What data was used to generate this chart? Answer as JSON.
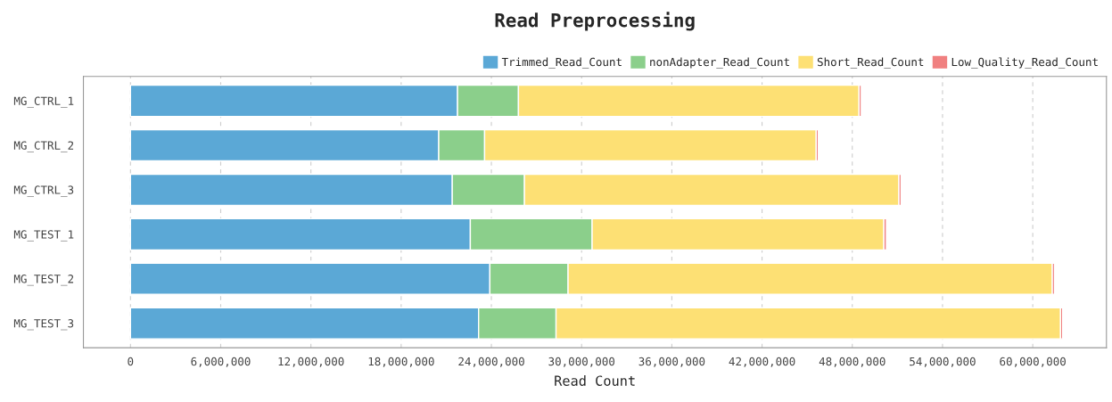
{
  "chart_data": {
    "type": "bar",
    "orientation": "horizontal",
    "stacked": true,
    "title": "Read Preprocessing",
    "xlabel": "Read Count",
    "categories": [
      "MG_CTRL_1",
      "MG_CTRL_2",
      "MG_CTRL_3",
      "MG_TEST_1",
      "MG_TEST_2",
      "MG_TEST_3"
    ],
    "series": [
      {
        "name": "Trimmed_Read_Count",
        "color": "#5ba8d6",
        "values": [
          21750000,
          20500000,
          21400000,
          22600000,
          23900000,
          23150000
        ]
      },
      {
        "name": "nonAdapter_Read_Count",
        "color": "#8bcf8b",
        "values": [
          4050000,
          3050000,
          4800000,
          8100000,
          5200000,
          5150000
        ]
      },
      {
        "name": "Short_Read_Count",
        "color": "#fde074",
        "values": [
          22650000,
          22050000,
          24900000,
          19400000,
          32200000,
          33550000
        ]
      },
      {
        "name": "Low_Quality_Read_Count",
        "color": "#f08080",
        "values": [
          150000,
          140000,
          150000,
          170000,
          150000,
          140000
        ]
      }
    ],
    "xlim": [
      -3130000,
      64900000
    ],
    "xticks": [
      {
        "value": 0,
        "label": "0"
      },
      {
        "value": 6000000,
        "label": "6,000,000"
      },
      {
        "value": 12000000,
        "label": "12,000,000"
      },
      {
        "value": 18000000,
        "label": "18,000,000"
      },
      {
        "value": 24000000,
        "label": "24,000,000"
      },
      {
        "value": 30000000,
        "label": "30,000,000"
      },
      {
        "value": 36000000,
        "label": "36,000,000"
      },
      {
        "value": 42000000,
        "label": "42,000,000"
      },
      {
        "value": 48000000,
        "label": "48,000,000"
      },
      {
        "value": 54000000,
        "label": "54,000,000"
      },
      {
        "value": 60000000,
        "label": "60,000,000"
      }
    ],
    "grid": "x",
    "legend": "top right"
  }
}
